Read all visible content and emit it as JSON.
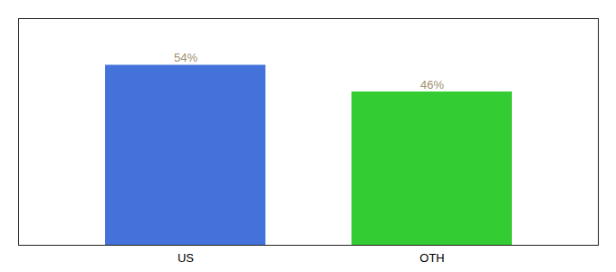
{
  "chart_data": {
    "type": "bar",
    "categories": [
      "US",
      "OTH"
    ],
    "values": [
      54,
      46
    ],
    "value_labels": [
      "54%",
      "46%"
    ],
    "colors": [
      "#4472db",
      "#33cc33"
    ],
    "ylim": [
      0,
      68
    ],
    "data_labels": true,
    "tick_labels": "x"
  }
}
